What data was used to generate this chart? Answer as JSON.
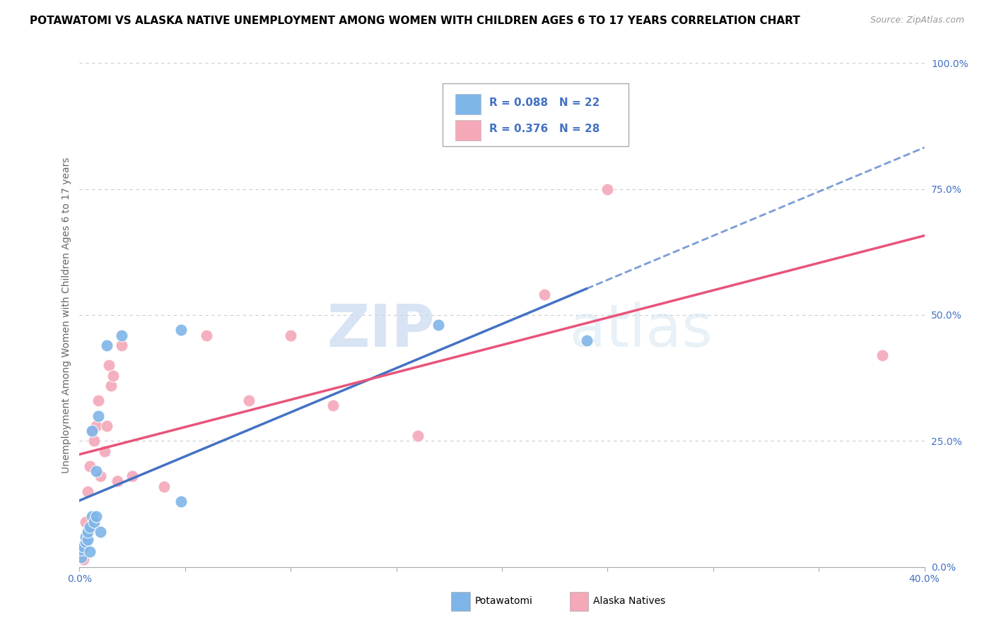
{
  "title": "POTAWATOMI VS ALASKA NATIVE UNEMPLOYMENT AMONG WOMEN WITH CHILDREN AGES 6 TO 17 YEARS CORRELATION CHART",
  "source": "Source: ZipAtlas.com",
  "ylabel": "Unemployment Among Women with Children Ages 6 to 17 years",
  "xlim": [
    0.0,
    0.4
  ],
  "ylim": [
    0.0,
    1.0
  ],
  "xticks": [
    0.0,
    0.05,
    0.1,
    0.15,
    0.2,
    0.25,
    0.3,
    0.35,
    0.4
  ],
  "xtick_labels": [
    "0.0%",
    "",
    "",
    "",
    "",
    "",
    "",
    "",
    "40.0%"
  ],
  "yticks_right": [
    0.0,
    0.25,
    0.5,
    0.75,
    1.0
  ],
  "ytick_labels_right": [
    "0.0%",
    "25.0%",
    "50.0%",
    "75.0%",
    "100.0%"
  ],
  "potawatomi_color": "#7EB5E8",
  "alaska_color": "#F4A8B8",
  "trendline_potawatomi_color": "#4472C4",
  "trendline_alaska_color": "#E8547A",
  "R_potawatomi": 0.088,
  "N_potawatomi": 22,
  "R_alaska": 0.376,
  "N_alaska": 28,
  "potawatomi_x": [
    0.001,
    0.001,
    0.002,
    0.003,
    0.003,
    0.004,
    0.004,
    0.005,
    0.005,
    0.006,
    0.006,
    0.007,
    0.008,
    0.008,
    0.009,
    0.01,
    0.013,
    0.02,
    0.048,
    0.048,
    0.17,
    0.24
  ],
  "potawatomi_y": [
    0.02,
    0.035,
    0.04,
    0.05,
    0.06,
    0.055,
    0.07,
    0.03,
    0.08,
    0.1,
    0.27,
    0.09,
    0.1,
    0.19,
    0.3,
    0.07,
    0.44,
    0.46,
    0.13,
    0.47,
    0.48,
    0.45
  ],
  "alaska_x": [
    0.001,
    0.002,
    0.003,
    0.003,
    0.004,
    0.005,
    0.006,
    0.007,
    0.008,
    0.009,
    0.01,
    0.012,
    0.013,
    0.014,
    0.015,
    0.016,
    0.018,
    0.02,
    0.025,
    0.04,
    0.06,
    0.08,
    0.1,
    0.12,
    0.16,
    0.22,
    0.25,
    0.38
  ],
  "alaska_y": [
    0.04,
    0.015,
    0.05,
    0.09,
    0.15,
    0.2,
    0.27,
    0.25,
    0.28,
    0.33,
    0.18,
    0.23,
    0.28,
    0.4,
    0.36,
    0.38,
    0.17,
    0.44,
    0.18,
    0.16,
    0.46,
    0.33,
    0.46,
    0.32,
    0.26,
    0.54,
    0.75,
    0.42
  ],
  "background_color": "#FFFFFF",
  "watermark_zip": "ZIP",
  "watermark_atlas": "atlas",
  "legend_text_color": "#4472C4",
  "title_fontsize": 11,
  "label_fontsize": 10,
  "tick_fontsize": 10,
  "legend_fontsize": 11
}
